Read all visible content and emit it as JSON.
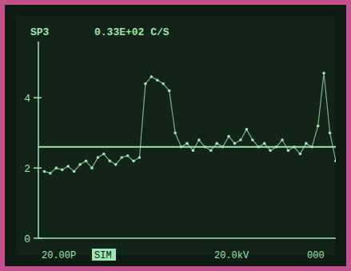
{
  "chart_data": {
    "type": "line",
    "title": "SP3",
    "subtitle": "0.33E+02 C/S",
    "annotations": [
      "20.00P",
      "SIM",
      "20.0kV",
      "000"
    ],
    "x": [
      2,
      4,
      6,
      8,
      10,
      12,
      14,
      16,
      18,
      20,
      22,
      24,
      26,
      28,
      30,
      32,
      34,
      36,
      38,
      40,
      42,
      44,
      46,
      48,
      50,
      52,
      54,
      56,
      58,
      60,
      62,
      64,
      66,
      68,
      70,
      72,
      74,
      76,
      78,
      80,
      82,
      84,
      86,
      88,
      90,
      92,
      94,
      96,
      98,
      100
    ],
    "values": [
      1.9,
      1.85,
      2.0,
      1.95,
      2.05,
      1.9,
      2.1,
      2.2,
      2.0,
      2.3,
      2.4,
      2.2,
      2.1,
      2.3,
      2.35,
      2.2,
      2.3,
      4.4,
      4.6,
      4.5,
      4.4,
      4.2,
      3.0,
      2.6,
      2.7,
      2.5,
      2.8,
      2.6,
      2.5,
      2.7,
      2.6,
      2.9,
      2.7,
      2.8,
      3.1,
      2.8,
      2.6,
      2.7,
      2.5,
      2.6,
      2.8,
      2.5,
      2.6,
      2.4,
      2.7,
      2.6,
      3.2,
      4.7,
      3.0,
      2.2
    ],
    "baseline": 2.6,
    "color": "#9fe6b0",
    "marker": "dot",
    "line_style": "solid",
    "xlim": [
      0,
      100
    ],
    "ylim": [
      0,
      5.6
    ],
    "yticks": [
      0,
      2,
      4
    ],
    "tick_labels": "y",
    "grid": false
  }
}
